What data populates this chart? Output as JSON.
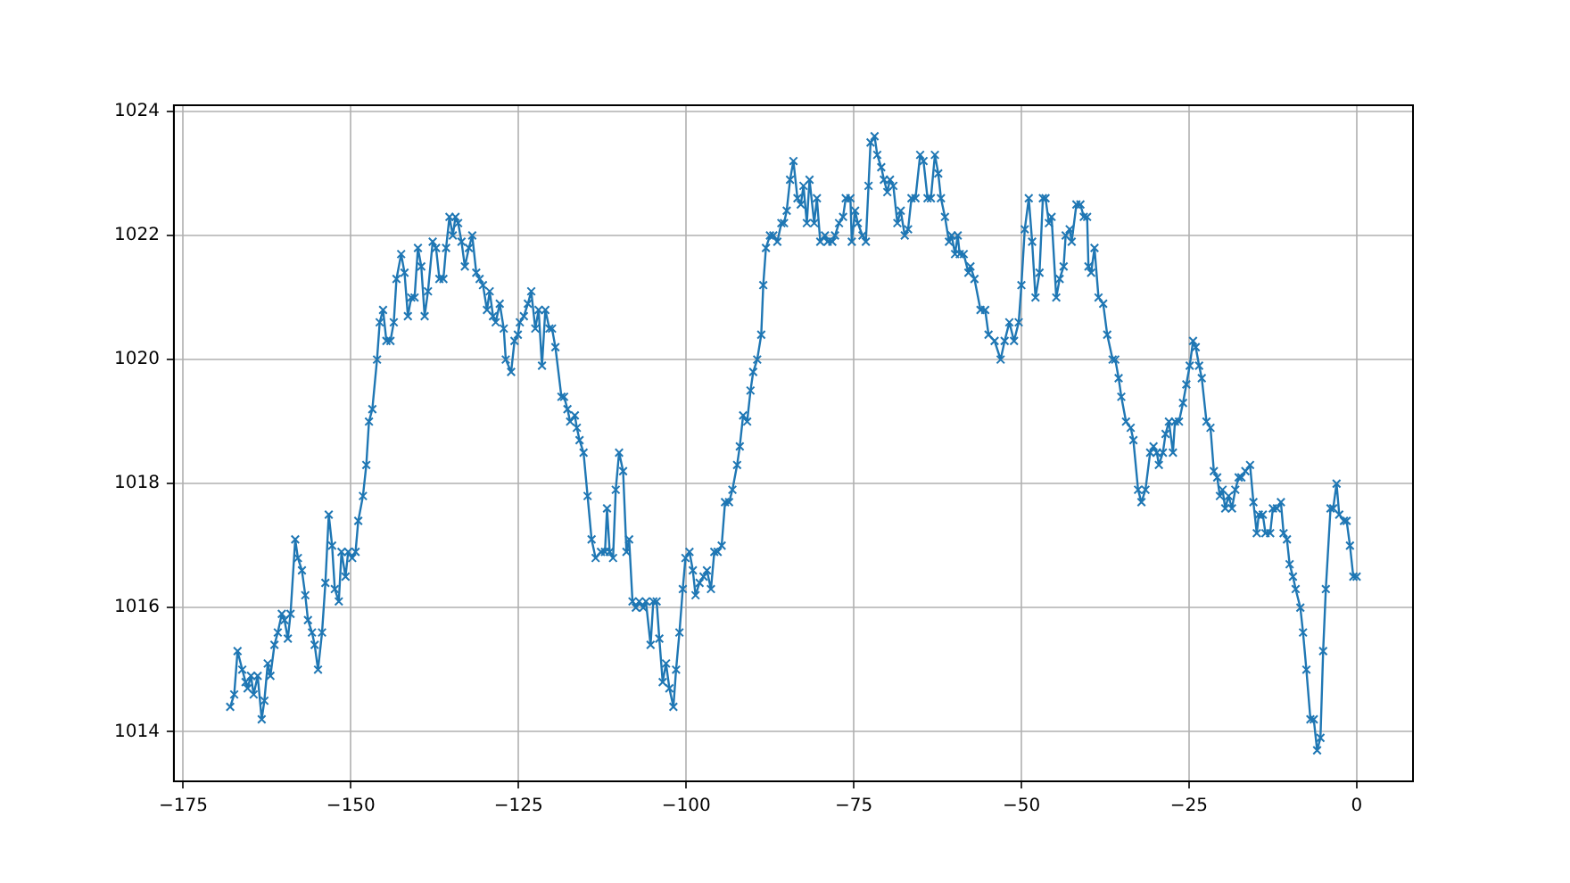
{
  "chart_data": {
    "type": "line",
    "marker": "cross",
    "line_style": "solid",
    "grid": true,
    "xlim": [
      -176.4,
      8.4
    ],
    "ylim": [
      1013.2,
      1024.1
    ],
    "xticks": [
      {
        "value": -175,
        "label": "−175"
      },
      {
        "value": -150,
        "label": "−150"
      },
      {
        "value": -125,
        "label": "−125"
      },
      {
        "value": -100,
        "label": "−100"
      },
      {
        "value": -75,
        "label": "−75"
      },
      {
        "value": -50,
        "label": "−50"
      },
      {
        "value": -25,
        "label": "−25"
      },
      0
    ],
    "yticks": [
      1014,
      1016,
      1018,
      1020,
      1022,
      1024
    ],
    "series": [
      {
        "color": "#1f77b4",
        "x": [
          -168.0,
          -167.4,
          -166.9,
          -166.2,
          -165.7,
          -165.4,
          -164.9,
          -164.5,
          -163.9,
          -163.3,
          -162.9,
          -162.4,
          -162.0,
          -161.4,
          -160.9,
          -160.3,
          -159.9,
          -159.4,
          -159.0,
          -158.3,
          -157.9,
          -157.3,
          -156.8,
          -156.4,
          -155.8,
          -155.4,
          -154.9,
          -154.3,
          -153.8,
          -153.3,
          -152.8,
          -152.4,
          -151.8,
          -151.4,
          -150.8,
          -150.4,
          -149.8,
          -149.3,
          -148.9,
          -148.2,
          -147.7,
          -147.3,
          -146.8,
          -146.1,
          -145.7,
          -145.2,
          -144.7,
          -144.1,
          -143.6,
          -143.2,
          -142.5,
          -142.0,
          -141.5,
          -141.0,
          -140.5,
          -140.0,
          -139.5,
          -139.0,
          -138.5,
          -137.8,
          -137.3,
          -136.8,
          -136.2,
          -135.8,
          -135.3,
          -134.8,
          -134.4,
          -134.0,
          -133.5,
          -133.0,
          -132.4,
          -131.9,
          -131.3,
          -130.8,
          -130.3,
          -129.7,
          -129.3,
          -128.8,
          -128.4,
          -127.8,
          -127.2,
          -126.9,
          -126.1,
          -125.6,
          -125.1,
          -124.8,
          -124.2,
          -123.6,
          -123.1,
          -122.5,
          -122.0,
          -121.5,
          -121.0,
          -120.4,
          -120.0,
          -119.5,
          -118.6,
          -118.2,
          -117.7,
          -117.3,
          -116.6,
          -116.3,
          -115.9,
          -115.3,
          -114.7,
          -114.1,
          -113.5,
          -112.7,
          -112.1,
          -111.8,
          -111.4,
          -110.9,
          -110.5,
          -110.0,
          -109.4,
          -108.9,
          -108.5,
          -108.0,
          -107.5,
          -107.0,
          -106.4,
          -106.0,
          -105.3,
          -104.9,
          -104.4,
          -104.0,
          -103.5,
          -103.0,
          -102.5,
          -101.9,
          -101.5,
          -101.0,
          -100.5,
          -100.1,
          -99.5,
          -99.0,
          -98.6,
          -98.0,
          -97.4,
          -96.9,
          -96.3,
          -95.8,
          -95.3,
          -94.7,
          -94.2,
          -93.6,
          -93.1,
          -92.4,
          -92.0,
          -91.5,
          -90.9,
          -90.4,
          -90.0,
          -89.4,
          -88.8,
          -88.5,
          -88.1,
          -87.5,
          -87.0,
          -86.4,
          -85.8,
          -85.4,
          -85.0,
          -84.5,
          -84.0,
          -83.4,
          -82.9,
          -82.5,
          -82.0,
          -81.6,
          -80.9,
          -80.5,
          -80.0,
          -79.3,
          -78.9,
          -78.2,
          -77.8,
          -77.2,
          -76.6,
          -76.2,
          -75.5,
          -75.3,
          -74.8,
          -74.4,
          -73.7,
          -73.2,
          -72.8,
          -72.5,
          -71.9,
          -71.5,
          -70.9,
          -70.5,
          -70.0,
          -69.6,
          -69.1,
          -68.5,
          -68.0,
          -67.4,
          -66.9,
          -66.4,
          -65.8,
          -65.1,
          -64.6,
          -64.0,
          -63.5,
          -62.9,
          -62.4,
          -62.0,
          -61.4,
          -60.8,
          -60.4,
          -59.9,
          -59.5,
          -59.2,
          -58.6,
          -57.9,
          -57.6,
          -57.0,
          -56.1,
          -55.4,
          -54.9,
          -54.0,
          -53.1,
          -52.5,
          -51.8,
          -51.1,
          -50.4,
          -50.0,
          -49.5,
          -48.9,
          -48.4,
          -47.9,
          -47.3,
          -46.8,
          -46.4,
          -45.9,
          -45.5,
          -44.8,
          -44.3,
          -43.7,
          -43.4,
          -42.8,
          -42.5,
          -41.8,
          -41.2,
          -40.7,
          -40.2,
          -40.0,
          -39.6,
          -39.1,
          -38.5,
          -37.8,
          -37.2,
          -36.4,
          -36.0,
          -35.5,
          -35.1,
          -34.4,
          -33.7,
          -33.3,
          -32.6,
          -32.1,
          -31.5,
          -30.8,
          -30.3,
          -29.8,
          -29.5,
          -28.9,
          -28.5,
          -28.0,
          -27.4,
          -27.1,
          -26.5,
          -25.9,
          -25.4,
          -24.9,
          -24.4,
          -24.0,
          -23.5,
          -23.1,
          -22.4,
          -21.8,
          -21.3,
          -20.8,
          -20.4,
          -20.0,
          -19.6,
          -19.1,
          -18.6,
          -18.1,
          -17.6,
          -17.2,
          -16.6,
          -15.9,
          -15.4,
          -14.9,
          -14.6,
          -14.0,
          -13.6,
          -12.9,
          -12.5,
          -11.9,
          -11.3,
          -10.9,
          -10.4,
          -10.0,
          -9.5,
          -9.1,
          -8.4,
          -8.0,
          -7.5,
          -6.9,
          -6.4,
          -5.9,
          -5.4,
          -5.0,
          -4.6,
          -3.9,
          -3.5,
          -3.0,
          -2.6,
          -1.9,
          -1.5,
          -1.0,
          -0.5,
          0.0
        ],
        "values": [
          1014.4,
          1014.6,
          1015.3,
          1015.0,
          1014.8,
          1014.7,
          1014.9,
          1014.6,
          1014.9,
          1014.2,
          1014.5,
          1015.1,
          1014.9,
          1015.4,
          1015.6,
          1015.9,
          1015.8,
          1015.5,
          1015.9,
          1017.1,
          1016.8,
          1016.6,
          1016.2,
          1015.8,
          1015.6,
          1015.4,
          1015.0,
          1015.6,
          1016.4,
          1017.5,
          1017.0,
          1016.3,
          1016.1,
          1016.9,
          1016.5,
          1016.9,
          1016.8,
          1016.9,
          1017.4,
          1017.8,
          1018.3,
          1019.0,
          1019.2,
          1020.0,
          1020.6,
          1020.8,
          1020.3,
          1020.3,
          1020.6,
          1021.3,
          1021.7,
          1021.4,
          1020.7,
          1021.0,
          1021.0,
          1021.8,
          1021.5,
          1020.7,
          1021.1,
          1021.9,
          1021.8,
          1021.3,
          1021.3,
          1021.8,
          1022.3,
          1022.0,
          1022.3,
          1022.2,
          1021.9,
          1021.5,
          1021.8,
          1022.0,
          1021.4,
          1021.3,
          1021.2,
          1020.8,
          1021.1,
          1020.7,
          1020.6,
          1020.9,
          1020.5,
          1020.0,
          1019.8,
          1020.3,
          1020.4,
          1020.6,
          1020.7,
          1020.9,
          1021.1,
          1020.5,
          1020.8,
          1019.9,
          1020.8,
          1020.5,
          1020.5,
          1020.2,
          1019.4,
          1019.4,
          1019.2,
          1019.0,
          1019.1,
          1018.9,
          1018.7,
          1018.5,
          1017.8,
          1017.1,
          1016.8,
          1016.9,
          1016.9,
          1017.6,
          1016.9,
          1016.8,
          1017.9,
          1018.5,
          1018.2,
          1016.9,
          1017.1,
          1016.1,
          1016.0,
          1016.1,
          1016.0,
          1016.1,
          1015.4,
          1016.1,
          1016.1,
          1015.5,
          1014.8,
          1015.1,
          1014.7,
          1014.4,
          1015.0,
          1015.6,
          1016.3,
          1016.8,
          1016.9,
          1016.6,
          1016.2,
          1016.4,
          1016.5,
          1016.6,
          1016.3,
          1016.9,
          1016.9,
          1017.0,
          1017.7,
          1017.7,
          1017.9,
          1018.3,
          1018.6,
          1019.1,
          1019.0,
          1019.5,
          1019.8,
          1020.0,
          1020.4,
          1021.2,
          1021.8,
          1022.0,
          1022.0,
          1021.9,
          1022.2,
          1022.2,
          1022.4,
          1022.9,
          1023.2,
          1022.6,
          1022.5,
          1022.8,
          1022.2,
          1022.9,
          1022.2,
          1022.6,
          1021.9,
          1022.0,
          1021.9,
          1021.9,
          1022.0,
          1022.2,
          1022.3,
          1022.6,
          1022.6,
          1021.9,
          1022.4,
          1022.2,
          1022.0,
          1021.9,
          1022.8,
          1023.5,
          1023.6,
          1023.3,
          1023.1,
          1022.9,
          1022.7,
          1022.9,
          1022.8,
          1022.2,
          1022.4,
          1022.0,
          1022.1,
          1022.6,
          1022.6,
          1023.3,
          1023.2,
          1022.6,
          1022.6,
          1023.3,
          1023.0,
          1022.6,
          1022.3,
          1021.9,
          1022.0,
          1021.7,
          1022.0,
          1021.7,
          1021.7,
          1021.4,
          1021.5,
          1021.3,
          1020.8,
          1020.8,
          1020.4,
          1020.3,
          1020.0,
          1020.3,
          1020.6,
          1020.3,
          1020.6,
          1021.2,
          1022.1,
          1022.6,
          1021.9,
          1021.0,
          1021.4,
          1022.6,
          1022.6,
          1022.2,
          1022.3,
          1021.0,
          1021.3,
          1021.5,
          1022.0,
          1022.1,
          1021.9,
          1022.5,
          1022.5,
          1022.3,
          1022.3,
          1021.5,
          1021.4,
          1021.8,
          1021.0,
          1020.9,
          1020.4,
          1020.0,
          1020.0,
          1019.7,
          1019.4,
          1019.0,
          1018.9,
          1018.7,
          1017.9,
          1017.7,
          1017.9,
          1018.5,
          1018.6,
          1018.5,
          1018.3,
          1018.5,
          1018.8,
          1019.0,
          1018.5,
          1019.0,
          1019.0,
          1019.3,
          1019.6,
          1019.9,
          1020.3,
          1020.2,
          1019.9,
          1019.7,
          1019.0,
          1018.9,
          1018.2,
          1018.1,
          1017.8,
          1017.9,
          1017.6,
          1017.8,
          1017.6,
          1017.9,
          1018.1,
          1018.1,
          1018.2,
          1018.3,
          1017.7,
          1017.2,
          1017.5,
          1017.5,
          1017.2,
          1017.2,
          1017.6,
          1017.6,
          1017.7,
          1017.2,
          1017.1,
          1016.7,
          1016.5,
          1016.3,
          1016.0,
          1015.6,
          1015.0,
          1014.2,
          1014.2,
          1013.7,
          1013.9,
          1015.3,
          1016.3,
          1017.6,
          1017.6,
          1018.0,
          1017.5,
          1017.4,
          1017.4,
          1017.0,
          1016.5,
          1016.5
        ]
      }
    ]
  }
}
